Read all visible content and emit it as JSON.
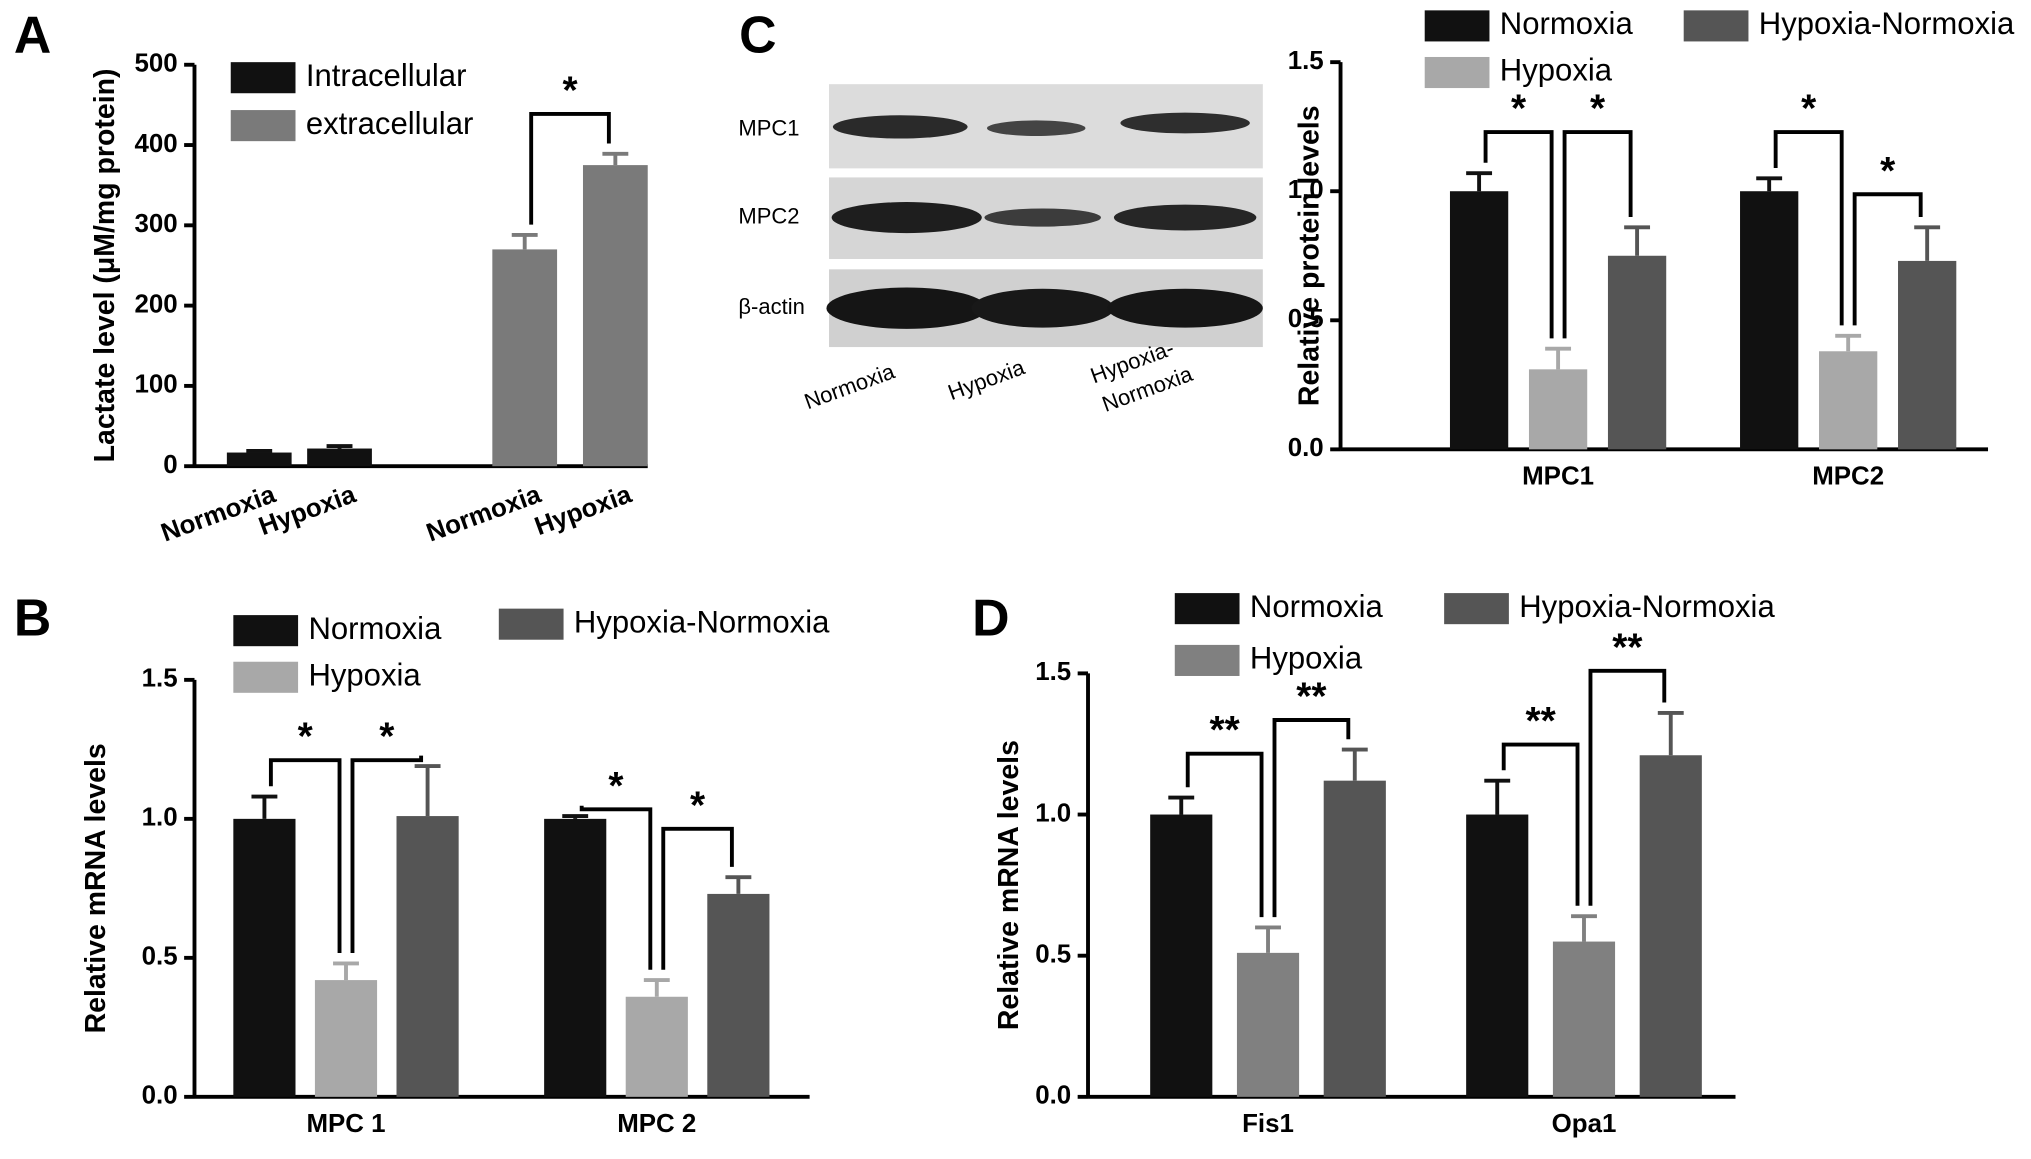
{
  "chart_data": [
    {
      "type": "bar",
      "panel": "A",
      "ylabel": "Lactate level (μM/mg protein)",
      "categories": [
        "Normoxia",
        "Hypoxia",
        "Normoxia",
        "Hypoxia"
      ],
      "series": [
        {
          "name": "Intracellular",
          "color": "#111111",
          "values": [
            17,
            22,
            null,
            null
          ],
          "errors": [
            2,
            3,
            null,
            null
          ]
        },
        {
          "name": "extracellular",
          "color": "#7a7a7a",
          "values": [
            null,
            null,
            270,
            375
          ],
          "errors": [
            null,
            null,
            18,
            14
          ]
        }
      ],
      "ylim": [
        0,
        500
      ],
      "yticks": [
        0,
        100,
        200,
        300,
        400,
        500
      ],
      "annotations": [
        "*"
      ]
    },
    {
      "type": "bar",
      "panel": "B",
      "ylabel": "Relative mRNA levels",
      "categories": [
        "MPC 1",
        "MPC 2"
      ],
      "series": [
        {
          "name": "Normoxia",
          "color": "#111111",
          "values": [
            1.0,
            1.0
          ],
          "errors": [
            0.08,
            0.01
          ]
        },
        {
          "name": "Hypoxia",
          "color": "#a8a8a8",
          "values": [
            0.42,
            0.36
          ],
          "errors": [
            0.06,
            0.06
          ]
        },
        {
          "name": "Hypoxia-Normoxia",
          "color": "#555555",
          "values": [
            1.01,
            0.73
          ],
          "errors": [
            0.18,
            0.06
          ]
        }
      ],
      "ylim": [
        0,
        1.5
      ],
      "yticks": [
        {
          "value": 0,
          "label": "0.0"
        },
        0.5,
        {
          "value": 1,
          "label": "1.0"
        },
        1.5
      ],
      "annotations": [
        "*",
        "*",
        "*",
        "*"
      ]
    },
    {
      "type": "bar",
      "panel": "C",
      "ylabel": "Relative protein levels",
      "blot": {
        "rows": [
          "MPC1",
          "MPC2",
          "β-actin"
        ],
        "lanes": [
          [
            "Normoxia"
          ],
          [
            "Hypoxia"
          ],
          [
            "Hypoxia-",
            "Normoxia"
          ]
        ]
      },
      "categories": [
        "MPC1",
        "MPC2"
      ],
      "series": [
        {
          "name": "Normoxia",
          "color": "#111111",
          "values": [
            1.0,
            1.0
          ],
          "errors": [
            0.07,
            0.05
          ]
        },
        {
          "name": "Hypoxia",
          "color": "#a8a8a8",
          "values": [
            0.31,
            0.38
          ],
          "errors": [
            0.08,
            0.06
          ]
        },
        {
          "name": "Hypoxia-Normoxia",
          "color": "#555555",
          "values": [
            0.75,
            0.73
          ],
          "errors": [
            0.11,
            0.13
          ]
        }
      ],
      "ylim": [
        0,
        1.5
      ],
      "yticks": [
        {
          "value": 0,
          "label": "0.0"
        },
        0.5,
        {
          "value": 1,
          "label": "1.0"
        },
        1.5
      ],
      "annotations": [
        "*",
        "*",
        "*",
        "*"
      ]
    },
    {
      "type": "bar",
      "panel": "D",
      "ylabel": "Relative mRNA levels",
      "categories": [
        "Fis1",
        "Opa1"
      ],
      "series": [
        {
          "name": "Normoxia",
          "color": "#111111",
          "values": [
            1.0,
            1.0
          ],
          "errors": [
            0.06,
            0.12
          ]
        },
        {
          "name": "Hypoxia",
          "color": "#808080",
          "values": [
            0.51,
            0.55
          ],
          "errors": [
            0.09,
            0.09
          ]
        },
        {
          "name": "Hypoxia-Normoxia",
          "color": "#555555",
          "values": [
            1.12,
            1.21
          ],
          "errors": [
            0.11,
            0.15
          ]
        }
      ],
      "ylim": [
        0,
        1.5
      ],
      "yticks": [
        {
          "value": 0,
          "label": "0.0"
        },
        0.5,
        {
          "value": 1,
          "label": "1.0"
        },
        1.5
      ],
      "annotations": [
        "**",
        "**",
        "**",
        "**"
      ]
    }
  ]
}
